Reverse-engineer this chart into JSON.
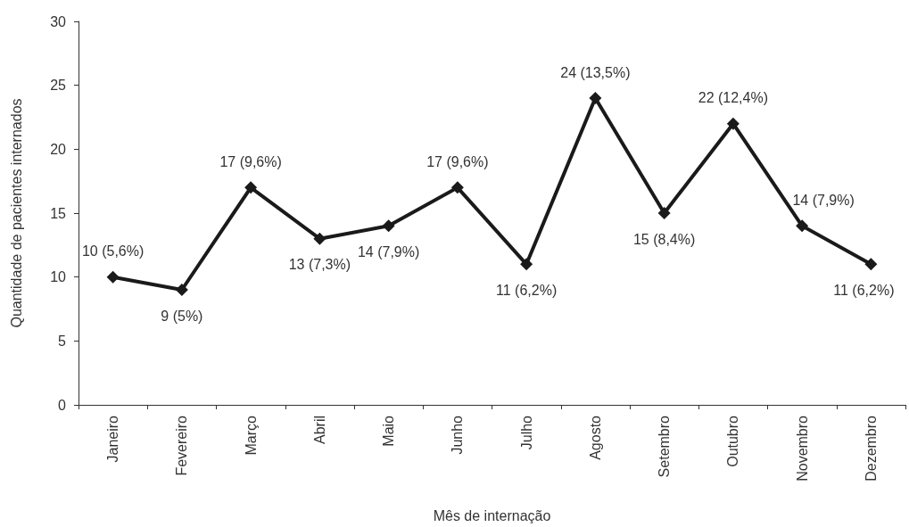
{
  "chart_data": {
    "type": "line",
    "xlabel": "Mês de internação",
    "ylabel": "Quantidade de pacientes internados",
    "categories": [
      "Janeiro",
      "Fevereiro",
      "Março",
      "Abril",
      "Maio",
      "Junho",
      "Julho",
      "Agosto",
      "Setembro",
      "Outubro",
      "Novembro",
      "Dezembro"
    ],
    "series": [
      {
        "color": "#1a1a1a",
        "values": [
          10,
          9,
          17,
          13,
          14,
          17,
          11,
          24,
          15,
          22,
          14,
          11
        ],
        "value_labels": [
          "10 (5,6%)",
          "9 (5%)",
          "17 (9,6%)",
          "13 (7,3%)",
          "14 (7,9%)",
          "17 (9,6%)",
          "11 (6,2%)",
          "24 (13,5%)",
          "15 (8,4%)",
          "22 (12,4%)",
          "14 (7,9%)",
          "11 (6,2%)"
        ]
      }
    ],
    "ylim": [
      0,
      30
    ],
    "yticks": [
      0,
      5,
      10,
      15,
      20,
      25,
      30
    ],
    "grid": false,
    "marker": "diamond",
    "line_style": "solid"
  }
}
